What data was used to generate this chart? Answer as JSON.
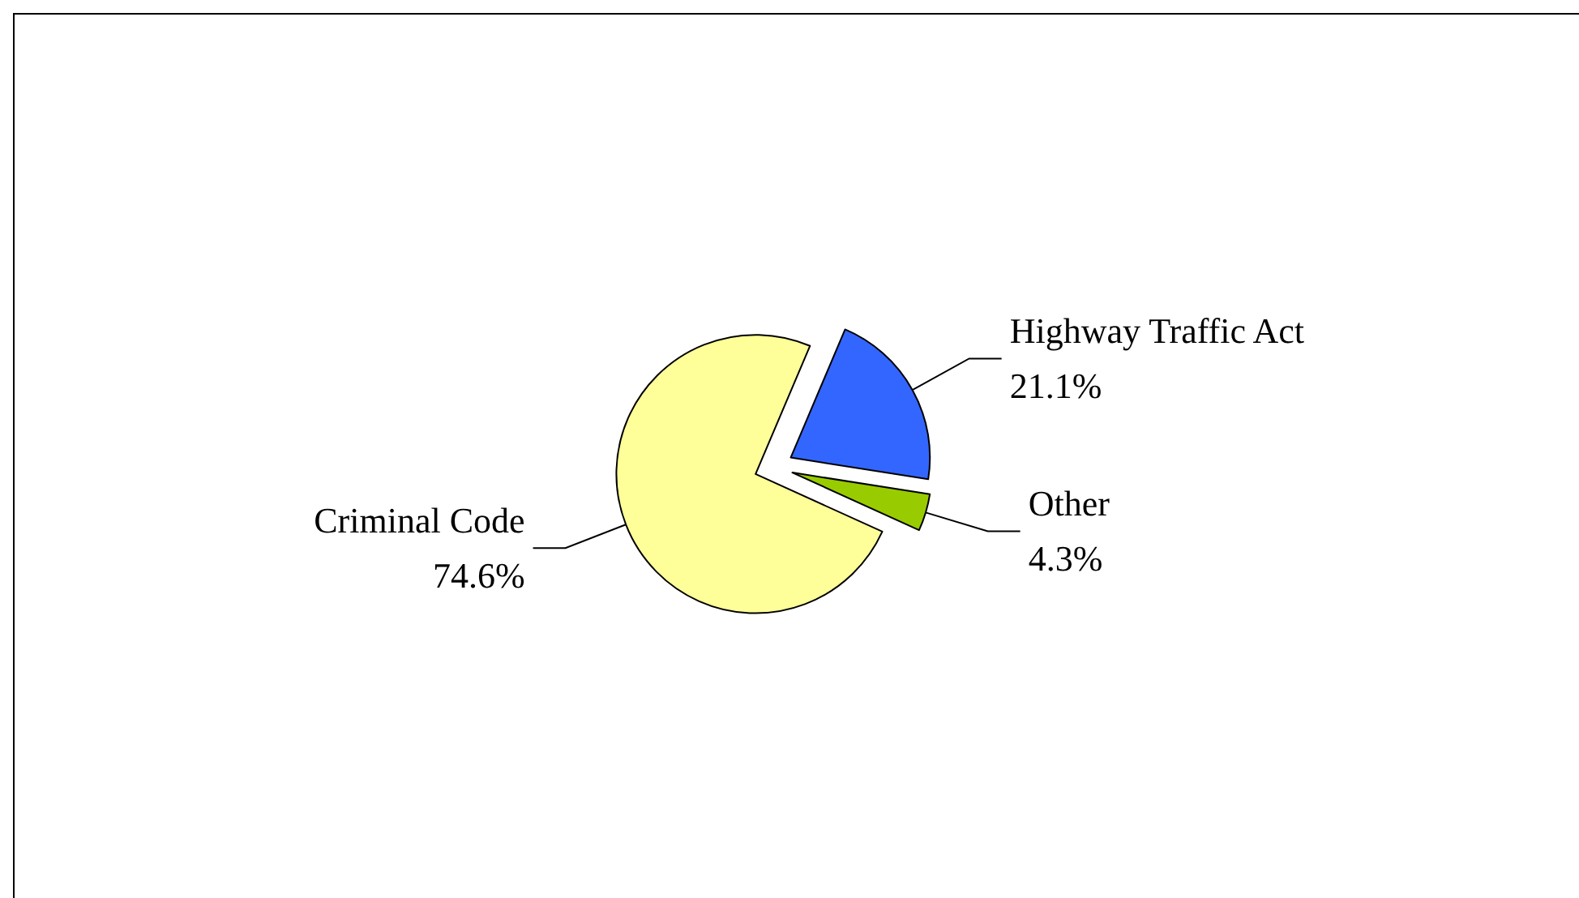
{
  "chart_data": {
    "type": "pie",
    "categories": [
      "Highway Traffic Act",
      "Other",
      "Criminal Code"
    ],
    "values": [
      21.1,
      4.3,
      74.6
    ],
    "colors": [
      "#3366ff",
      "#99cc00",
      "#ffff99"
    ],
    "value_labels": [
      "21.1%",
      "4.3%",
      "74.6%"
    ],
    "legend": false
  }
}
